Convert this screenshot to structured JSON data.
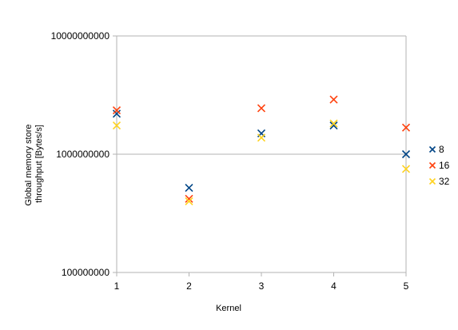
{
  "chart_data": {
    "type": "scatter",
    "xlabel": "Kernel",
    "ylabel_lines": [
      "Global memory store",
      "throughput [Bytes/s]"
    ],
    "x_ticks": [
      "1",
      "2",
      "3",
      "4",
      "5"
    ],
    "x": [
      1,
      2,
      3,
      4,
      5
    ],
    "y_scale": "log",
    "ylim": [
      100000000,
      10000000000
    ],
    "y_ticks": [
      {
        "value": 100000000,
        "label": "100000000"
      },
      {
        "value": 1000000000,
        "label": "1000000000"
      },
      {
        "value": 10000000000,
        "label": "10000000000"
      }
    ],
    "grid": "horizontal major lines",
    "legend_position": "right",
    "series": [
      {
        "name": "8",
        "color": "#004586",
        "values": [
          2200000000,
          520000000,
          1500000000,
          1750000000,
          1000000000
        ]
      },
      {
        "name": "16",
        "color": "#ff420e",
        "values": [
          2350000000,
          420000000,
          2450000000,
          2900000000,
          1680000000
        ]
      },
      {
        "name": "32",
        "color": "#ffd320",
        "values": [
          1750000000,
          400000000,
          1380000000,
          1820000000,
          750000000
        ]
      }
    ],
    "marker": "x"
  }
}
